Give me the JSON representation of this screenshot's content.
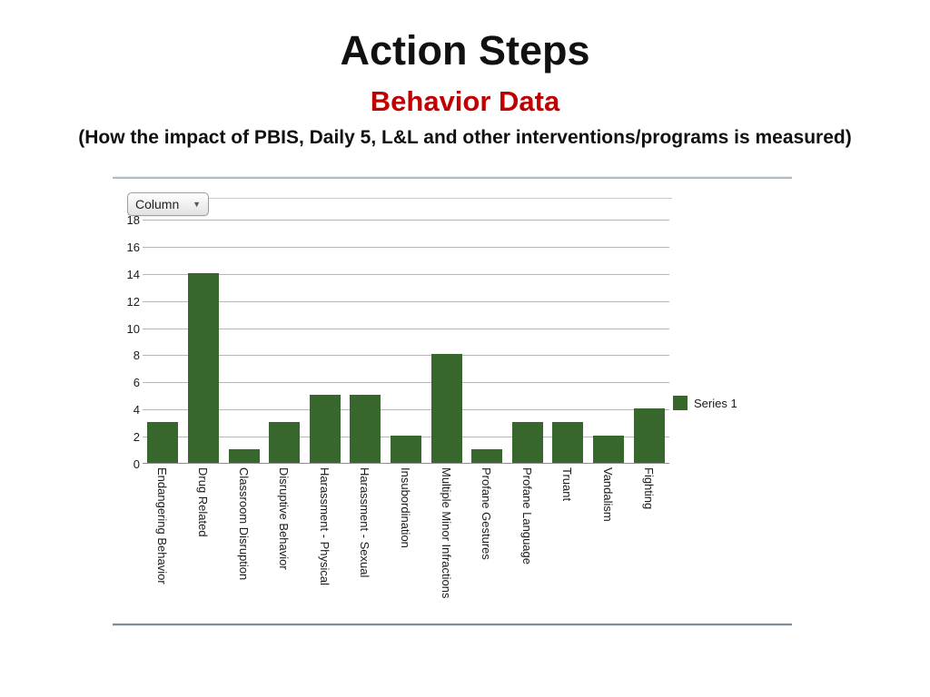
{
  "slide": {
    "title": "Action Steps",
    "subtitle": "Behavior Data",
    "subtitle_color": "#c00000",
    "description": "(How the impact of PBIS, Daily 5, L&L and other interventions/programs is measured)"
  },
  "chart_widget": {
    "type_selector_label": "Column",
    "legend_label": "Series 1"
  },
  "chart_data": {
    "type": "bar",
    "title": "",
    "categories": [
      "Endangering Behavior",
      "Drug Related",
      "Classroom Disruption",
      "Disruptive Behavior",
      "Harassment - Physical",
      "Harassment - Sexual",
      "Insubordination",
      "Multiple Minor Infractions",
      "Profane Gestures",
      "Profane Language",
      "Truant",
      "Vandalism",
      "Fighting"
    ],
    "series": [
      {
        "name": "Series 1",
        "values": [
          3,
          14,
          1,
          3,
          5,
          5,
          2,
          8,
          1,
          3,
          3,
          2,
          4
        ]
      }
    ],
    "xlabel": "",
    "ylabel": "",
    "ylim": [
      0,
      18
    ],
    "yticks": [
      0,
      2,
      4,
      6,
      8,
      10,
      12,
      14,
      16,
      18
    ],
    "grid": true,
    "legend_position": "right",
    "bar_color": "#37672c",
    "gridline_color": "#b6b6b6",
    "label_rotation": 90
  }
}
